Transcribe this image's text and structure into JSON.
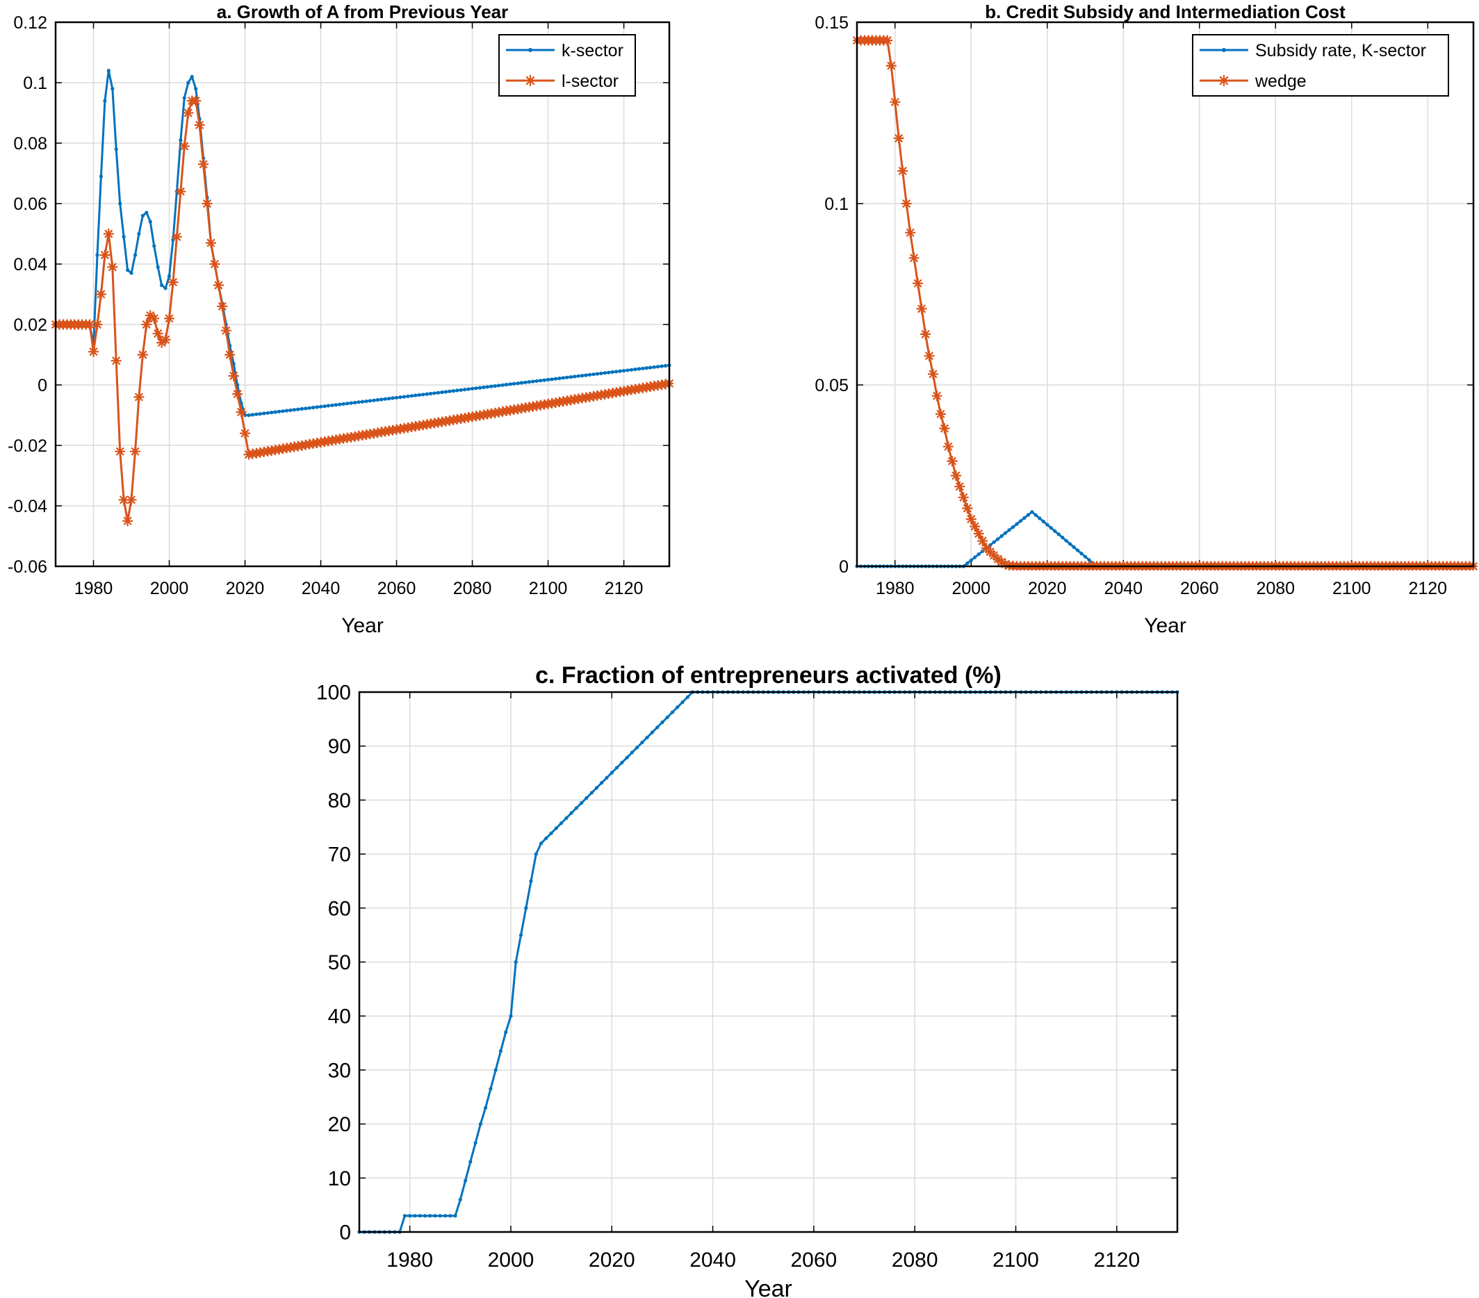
{
  "chart_data": [
    {
      "id": "a",
      "type": "line",
      "title": "a. Growth of A from Previous Year",
      "xlabel": "Year",
      "ylabel": "",
      "xlim": [
        1970,
        2132
      ],
      "ylim": [
        -0.06,
        0.12
      ],
      "xticks": [
        1980,
        2000,
        2020,
        2040,
        2060,
        2080,
        2100,
        2120
      ],
      "yticks": [
        -0.06,
        -0.04,
        -0.02,
        0,
        0.02,
        0.04,
        0.06,
        0.08,
        0.1,
        0.12
      ],
      "ytick_labels": [
        "-0.06",
        "-0.04",
        "-0.02",
        "0",
        "0.02",
        "0.04",
        "0.06",
        "0.08",
        "0.1",
        "0.12"
      ],
      "grid": true,
      "legend_position": "top-right",
      "series": [
        {
          "name": "k-sector",
          "color": "#0072BD",
          "marker": "dot",
          "x": [
            1970,
            1971,
            1972,
            1973,
            1974,
            1975,
            1976,
            1977,
            1978,
            1979,
            1980,
            1981,
            1982,
            1983,
            1984,
            1985,
            1986,
            1987,
            1988,
            1989,
            1990,
            1991,
            1992,
            1993,
            1994,
            1995,
            1996,
            1997,
            1998,
            1999,
            2000,
            2001,
            2002,
            2003,
            2004,
            2005,
            2006,
            2007,
            2008,
            2009,
            2010,
            2011,
            2012,
            2013,
            2014,
            2015,
            2016,
            2017,
            2018,
            2019,
            2020,
            2021,
            2132
          ],
          "y": [
            0.02,
            0.02,
            0.02,
            0.02,
            0.02,
            0.02,
            0.02,
            0.02,
            0.02,
            0.02,
            0.013,
            0.043,
            0.069,
            0.094,
            0.104,
            0.098,
            0.078,
            0.06,
            0.049,
            0.038,
            0.037,
            0.043,
            0.05,
            0.056,
            0.057,
            0.054,
            0.046,
            0.039,
            0.033,
            0.032,
            0.036,
            0.048,
            0.064,
            0.081,
            0.095,
            0.1,
            0.102,
            0.098,
            0.088,
            0.075,
            0.062,
            0.047,
            0.04,
            0.033,
            0.027,
            0.02,
            0.013,
            0.007,
            0.0,
            -0.006,
            -0.01,
            -0.01,
            0.0065
          ]
        },
        {
          "name": "l-sector",
          "color": "#D95319",
          "marker": "asterisk",
          "x": [
            1970,
            1971,
            1972,
            1973,
            1974,
            1975,
            1976,
            1977,
            1978,
            1979,
            1980,
            1981,
            1982,
            1983,
            1984,
            1985,
            1986,
            1987,
            1988,
            1989,
            1990,
            1991,
            1992,
            1993,
            1994,
            1995,
            1996,
            1997,
            1998,
            1999,
            2000,
            2001,
            2002,
            2003,
            2004,
            2005,
            2006,
            2007,
            2008,
            2009,
            2010,
            2011,
            2012,
            2013,
            2014,
            2015,
            2016,
            2017,
            2018,
            2019,
            2020,
            2021,
            2132
          ],
          "y": [
            0.02,
            0.02,
            0.02,
            0.02,
            0.02,
            0.02,
            0.02,
            0.02,
            0.02,
            0.02,
            0.011,
            0.02,
            0.03,
            0.043,
            0.05,
            0.039,
            0.008,
            -0.022,
            -0.038,
            -0.045,
            -0.038,
            -0.022,
            -0.004,
            0.01,
            0.02,
            0.023,
            0.022,
            0.017,
            0.014,
            0.015,
            0.022,
            0.034,
            0.049,
            0.064,
            0.079,
            0.09,
            0.094,
            0.094,
            0.086,
            0.073,
            0.06,
            0.047,
            0.04,
            0.033,
            0.026,
            0.018,
            0.01,
            0.003,
            -0.003,
            -0.009,
            -0.016,
            -0.023,
            0.0005
          ]
        }
      ]
    },
    {
      "id": "b",
      "type": "line",
      "title": "b. Credit Subsidy and Intermediation Cost",
      "xlabel": "Year",
      "ylabel": "",
      "xlim": [
        1970,
        2132
      ],
      "ylim": [
        0,
        0.15
      ],
      "xticks": [
        1980,
        2000,
        2020,
        2040,
        2060,
        2080,
        2100,
        2120
      ],
      "yticks": [
        0,
        0.05,
        0.1,
        0.15
      ],
      "ytick_labels": [
        "0",
        "0.05",
        "0.1",
        "0.15"
      ],
      "grid": true,
      "legend_position": "top-right",
      "series": [
        {
          "name": "Subsidy rate, K-sector",
          "color": "#0072BD",
          "marker": "dot",
          "x": [
            1970,
            1998,
            2016,
            2033,
            2132
          ],
          "y": [
            0,
            0,
            0.015,
            0,
            0
          ]
        },
        {
          "name": "wedge",
          "color": "#D95319",
          "marker": "asterisk",
          "x": [
            1970,
            1971,
            1972,
            1973,
            1974,
            1975,
            1976,
            1977,
            1978,
            1979,
            1980,
            1981,
            1982,
            1983,
            1984,
            1985,
            1986,
            1987,
            1988,
            1989,
            1990,
            1991,
            1992,
            1993,
            1994,
            1995,
            1996,
            1997,
            1998,
            1999,
            2000,
            2001,
            2002,
            2003,
            2004,
            2005,
            2006,
            2007,
            2008,
            2009,
            2010,
            2011,
            2012,
            2013,
            2014,
            2015,
            2016,
            2132
          ],
          "y": [
            0.145,
            0.145,
            0.145,
            0.145,
            0.145,
            0.145,
            0.145,
            0.145,
            0.145,
            0.138,
            0.128,
            0.118,
            0.109,
            0.1,
            0.092,
            0.085,
            0.078,
            0.071,
            0.064,
            0.058,
            0.053,
            0.047,
            0.042,
            0.038,
            0.033,
            0.029,
            0.025,
            0.022,
            0.019,
            0.016,
            0.013,
            0.011,
            0.009,
            0.007,
            0.005,
            0.004,
            0.003,
            0.002,
            0.0012,
            0.0006,
            0.0002,
            0.0001,
            0,
            0,
            0,
            0,
            0,
            0
          ]
        }
      ]
    },
    {
      "id": "c",
      "type": "line",
      "title": "c. Fraction of entrepreneurs activated (%)",
      "xlabel": "Year",
      "ylabel": "",
      "xlim": [
        1970,
        2132
      ],
      "ylim": [
        0,
        100
      ],
      "xticks": [
        1980,
        2000,
        2020,
        2040,
        2060,
        2080,
        2100,
        2120
      ],
      "yticks": [
        0,
        10,
        20,
        30,
        40,
        50,
        60,
        70,
        80,
        90,
        100
      ],
      "ytick_labels": [
        "0",
        "10",
        "20",
        "30",
        "40",
        "50",
        "60",
        "70",
        "80",
        "90",
        "100"
      ],
      "grid": true,
      "series": [
        {
          "name": "",
          "color": "#0072BD",
          "marker": "dot",
          "x": [
            1970,
            1978,
            1979,
            1989,
            1990,
            1991,
            1992,
            1993,
            1994,
            1995,
            1996,
            1997,
            1998,
            1999,
            2000,
            2001,
            2002,
            2003,
            2004,
            2005,
            2006,
            2036,
            2132
          ],
          "y": [
            0,
            0,
            3,
            3,
            6,
            9.5,
            13,
            16.5,
            20,
            23,
            26.5,
            30,
            33.5,
            37,
            40,
            50,
            55,
            60,
            65,
            70,
            72,
            100,
            100
          ]
        }
      ]
    }
  ]
}
